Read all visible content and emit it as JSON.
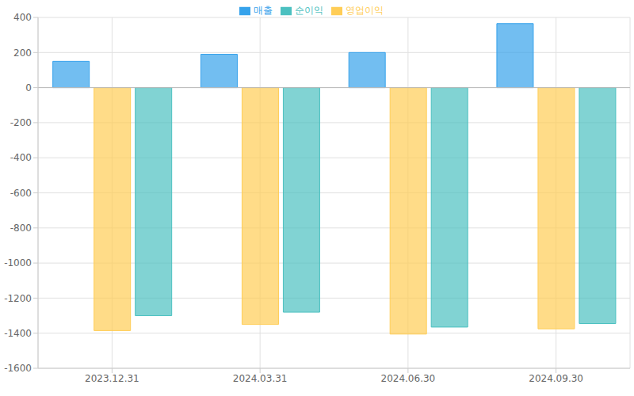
{
  "chart_data": {
    "type": "bar",
    "categories": [
      "2023.12.31",
      "2024.03.31",
      "2024.06.30",
      "2024.09.30"
    ],
    "series": [
      {
        "name": "매출",
        "color": "#36a2eb",
        "values": [
          150,
          190,
          200,
          365
        ]
      },
      {
        "name": "영업이익",
        "color": "#ffcd56",
        "values": [
          -1385,
          -1350,
          -1405,
          -1375
        ]
      },
      {
        "name": "순이익",
        "color": "#4bc0c0",
        "values": [
          -1300,
          -1280,
          -1365,
          -1345
        ]
      }
    ],
    "ylim": [
      -1600,
      400
    ],
    "yticks": [
      -1600,
      -1400,
      -1200,
      -1000,
      -800,
      -600,
      -400,
      -200,
      0,
      200,
      400
    ],
    "grid": true,
    "legend": "top"
  }
}
